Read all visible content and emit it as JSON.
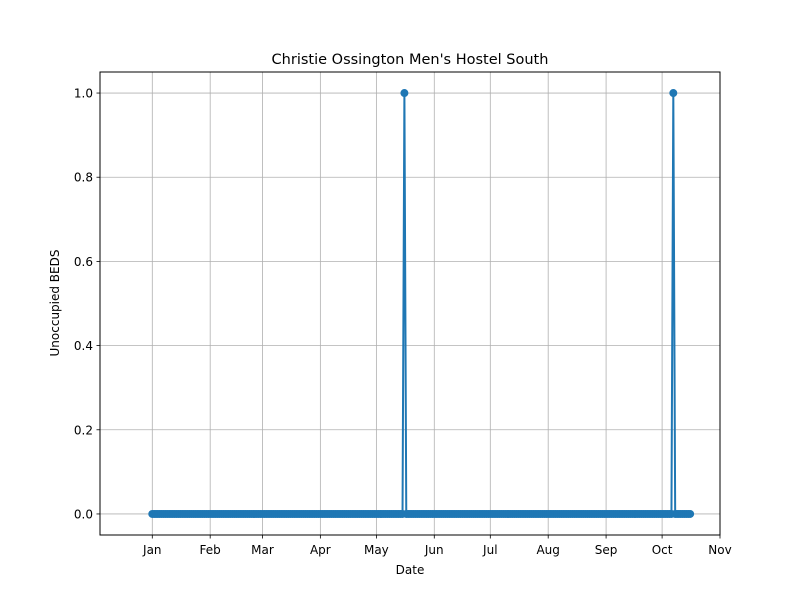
{
  "chart_data": {
    "type": "line",
    "title": "Christie Ossington Men's Hostel South",
    "xlabel": "Date",
    "ylabel": "Unoccupied BEDS",
    "x_tick_labels": [
      "Jan",
      "Feb",
      "Mar",
      "Apr",
      "May",
      "Jun",
      "Jul",
      "Aug",
      "Sep",
      "Oct",
      "Nov"
    ],
    "x_tick_dates": [
      "2021-01-01",
      "2021-02-01",
      "2021-03-01",
      "2021-04-01",
      "2021-05-01",
      "2021-06-01",
      "2021-07-01",
      "2021-08-01",
      "2021-09-01",
      "2021-10-01",
      "2021-11-01"
    ],
    "xlim": [
      "2020-12-04",
      "2021-11-01"
    ],
    "y_tick_labels": [
      "0.0",
      "0.2",
      "0.4",
      "0.6",
      "0.8",
      "1.0"
    ],
    "y_ticks": [
      0,
      0.2,
      0.4,
      0.6,
      0.7999999999999999,
      1
    ],
    "ylim": [
      -0.05,
      1.05
    ],
    "grid": true,
    "line_color": "#1f77b4",
    "marker": "circle",
    "series": [
      {
        "x_start": "2021-01-01",
        "x_end": "2021-10-16",
        "x_step_days": 1,
        "default_value": 0,
        "nonzero_points": [
          {
            "x": "2021-05-16",
            "y": 1
          },
          {
            "x": "2021-10-07",
            "y": 1
          }
        ]
      }
    ]
  }
}
